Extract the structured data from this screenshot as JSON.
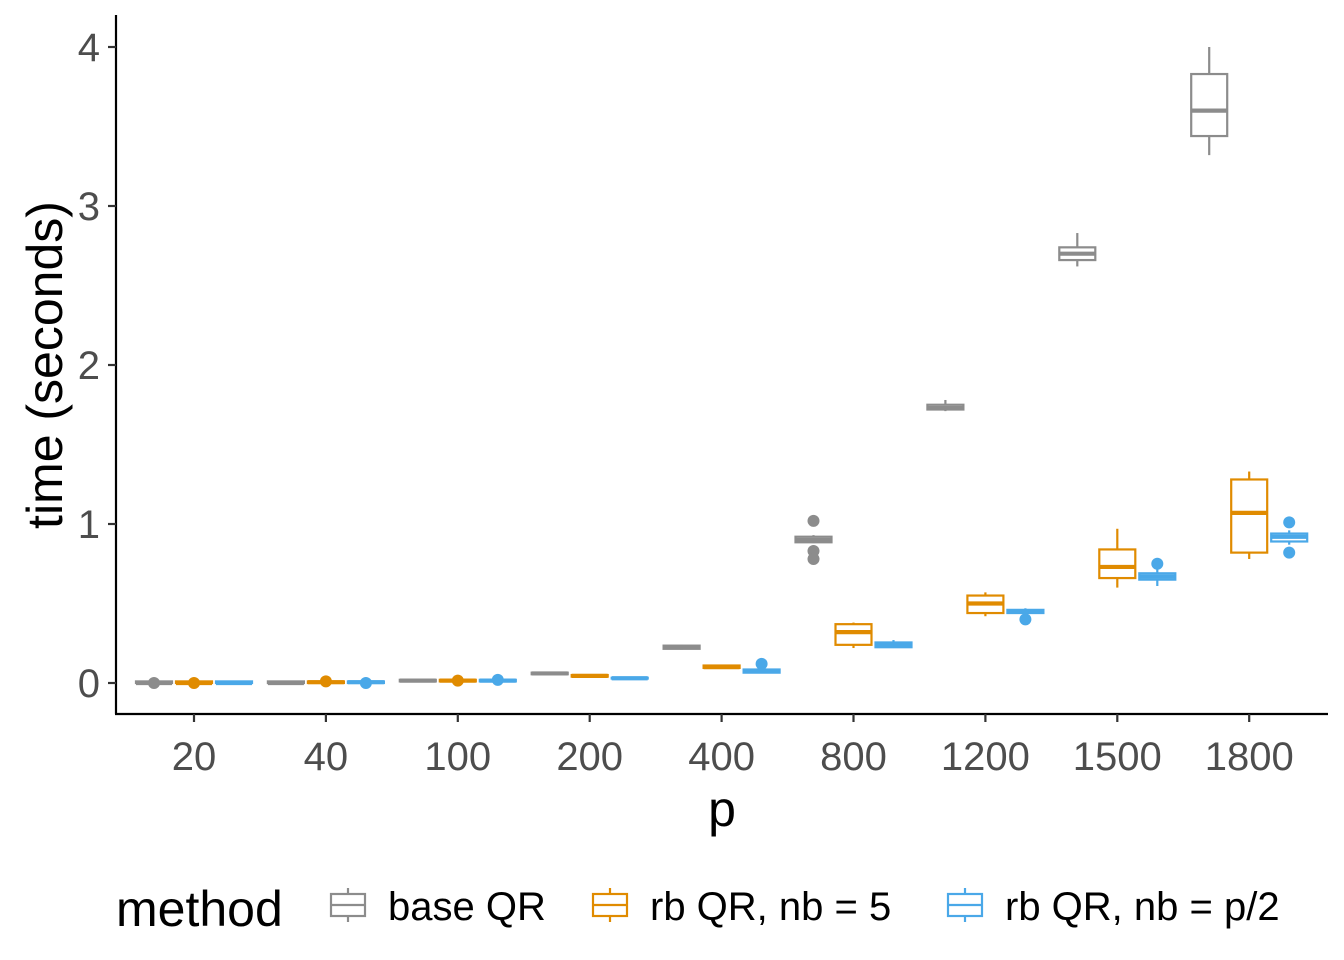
{
  "chart_data": {
    "type": "boxplot",
    "xlabel": "p",
    "ylabel": "time (seconds)",
    "categories": [
      "20",
      "40",
      "100",
      "200",
      "400",
      "800",
      "1200",
      "1500",
      "1800"
    ],
    "yticks": [
      "0",
      "1",
      "2",
      "3",
      "4"
    ],
    "ylim": [
      -0.2,
      4.2
    ],
    "grid": false,
    "legend": {
      "title": "method",
      "position": "bottom"
    },
    "series": [
      {
        "name": "base QR",
        "color": "#8c8c8c",
        "boxes": [
          {
            "min": 0.0,
            "q1": 0.0,
            "median": 0.0,
            "q3": 0.01,
            "max": 0.01,
            "outliers": [
              0.0
            ]
          },
          {
            "min": 0.0,
            "q1": 0.0,
            "median": 0.0,
            "q3": 0.01,
            "max": 0.01,
            "outliers": []
          },
          {
            "min": 0.01,
            "q1": 0.01,
            "median": 0.015,
            "q3": 0.02,
            "max": 0.02,
            "outliers": []
          },
          {
            "min": 0.05,
            "q1": 0.055,
            "median": 0.06,
            "q3": 0.065,
            "max": 0.07,
            "outliers": []
          },
          {
            "min": 0.21,
            "q1": 0.215,
            "median": 0.225,
            "q3": 0.235,
            "max": 0.24,
            "outliers": []
          },
          {
            "min": 0.88,
            "q1": 0.885,
            "median": 0.9,
            "q3": 0.92,
            "max": 0.93,
            "outliers": [
              1.02,
              0.83,
              0.78
            ]
          },
          {
            "min": 1.71,
            "q1": 1.72,
            "median": 1.73,
            "q3": 1.75,
            "max": 1.78,
            "outliers": []
          },
          {
            "min": 2.62,
            "q1": 2.66,
            "median": 2.7,
            "q3": 2.74,
            "max": 2.83,
            "outliers": []
          },
          {
            "min": 3.32,
            "q1": 3.44,
            "median": 3.6,
            "q3": 3.83,
            "max": 4.0,
            "outliers": []
          }
        ]
      },
      {
        "name": "rb QR, nb = 5",
        "color": "#e08b00",
        "boxes": [
          {
            "min": 0.0,
            "q1": 0.0,
            "median": 0.0,
            "q3": 0.01,
            "max": 0.01,
            "outliers": [
              0.0
            ]
          },
          {
            "min": 0.0,
            "q1": 0.0,
            "median": 0.005,
            "q3": 0.01,
            "max": 0.01,
            "outliers": [
              0.01
            ]
          },
          {
            "min": 0.01,
            "q1": 0.01,
            "median": 0.015,
            "q3": 0.02,
            "max": 0.02,
            "outliers": [
              0.015
            ]
          },
          {
            "min": 0.035,
            "q1": 0.04,
            "median": 0.045,
            "q3": 0.05,
            "max": 0.05,
            "outliers": []
          },
          {
            "min": 0.09,
            "q1": 0.095,
            "median": 0.1,
            "q3": 0.11,
            "max": 0.115,
            "outliers": []
          },
          {
            "min": 0.22,
            "q1": 0.24,
            "median": 0.32,
            "q3": 0.37,
            "max": 0.38,
            "outliers": []
          },
          {
            "min": 0.42,
            "q1": 0.44,
            "median": 0.5,
            "q3": 0.55,
            "max": 0.57,
            "outliers": []
          },
          {
            "min": 0.6,
            "q1": 0.66,
            "median": 0.73,
            "q3": 0.84,
            "max": 0.97,
            "outliers": []
          },
          {
            "min": 0.78,
            "q1": 0.82,
            "median": 1.07,
            "q3": 1.28,
            "max": 1.33,
            "outliers": []
          }
        ]
      },
      {
        "name": "rb QR, nb = p/2",
        "color": "#4aa8e8",
        "boxes": [
          {
            "min": 0.0,
            "q1": 0.0,
            "median": 0.0,
            "q3": 0.01,
            "max": 0.01,
            "outliers": []
          },
          {
            "min": 0.0,
            "q1": 0.0,
            "median": 0.005,
            "q3": 0.01,
            "max": 0.01,
            "outliers": [
              0.0
            ]
          },
          {
            "min": 0.01,
            "q1": 0.01,
            "median": 0.015,
            "q3": 0.02,
            "max": 0.02,
            "outliers": [
              0.02
            ]
          },
          {
            "min": 0.025,
            "q1": 0.028,
            "median": 0.03,
            "q3": 0.033,
            "max": 0.035,
            "outliers": []
          },
          {
            "min": 0.06,
            "q1": 0.065,
            "median": 0.075,
            "q3": 0.085,
            "max": 0.09,
            "outliers": [
              0.12
            ]
          },
          {
            "min": 0.22,
            "q1": 0.225,
            "median": 0.24,
            "q3": 0.255,
            "max": 0.27,
            "outliers": []
          },
          {
            "min": 0.43,
            "q1": 0.44,
            "median": 0.45,
            "q3": 0.46,
            "max": 0.47,
            "outliers": [
              0.4
            ]
          },
          {
            "min": 0.61,
            "q1": 0.65,
            "median": 0.67,
            "q3": 0.69,
            "max": 0.72,
            "outliers": [
              0.75
            ]
          },
          {
            "min": 0.87,
            "q1": 0.89,
            "median": 0.92,
            "q3": 0.94,
            "max": 0.96,
            "outliers": [
              1.01,
              0.82
            ]
          }
        ]
      }
    ]
  }
}
